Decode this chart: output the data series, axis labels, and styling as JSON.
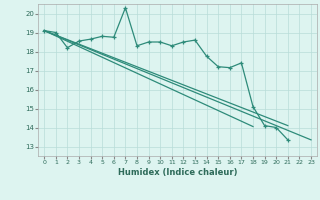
{
  "xlabel": "Humidex (Indice chaleur)",
  "ylabel": "",
  "xlim": [
    -0.5,
    23.5
  ],
  "ylim": [
    12.5,
    20.5
  ],
  "xticks": [
    0,
    1,
    2,
    3,
    4,
    5,
    6,
    7,
    8,
    9,
    10,
    11,
    12,
    13,
    14,
    15,
    16,
    17,
    18,
    19,
    20,
    21,
    22,
    23
  ],
  "yticks": [
    13,
    14,
    15,
    16,
    17,
    18,
    19,
    20
  ],
  "line_color": "#2e8b7a",
  "bg_color": "#ddf4f0",
  "grid_color": "#b8ddd8",
  "line1_y": [
    19.1,
    19.0,
    18.2,
    18.55,
    18.65,
    18.8,
    18.75,
    20.3,
    18.3,
    18.5,
    18.5,
    18.3,
    18.5,
    18.6,
    17.75,
    17.2,
    17.15,
    17.4,
    15.1,
    14.1,
    14.0,
    13.35,
    null,
    null
  ],
  "line2_y": [
    19.1,
    19.05,
    18.05,
    17.8,
    17.55,
    17.3,
    17.05,
    16.8,
    16.55,
    16.3,
    16.05,
    15.8,
    15.55,
    15.3,
    15.05,
    14.8,
    14.55,
    14.3,
    14.05,
    null,
    null,
    null,
    null,
    null
  ],
  "trend1_x": [
    0,
    23
  ],
  "trend1_y": [
    19.1,
    13.35
  ],
  "trend2_x": [
    0,
    18
  ],
  "trend2_y": [
    19.1,
    14.05
  ],
  "trend3_x": [
    0,
    21
  ],
  "trend3_y": [
    19.1,
    14.1
  ]
}
